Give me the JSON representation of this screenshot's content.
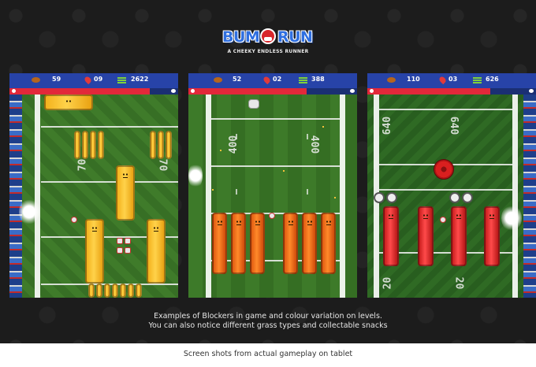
{
  "logo": {
    "word1": "BUM",
    "word2": "RUN",
    "tagline": "A CHEEKY ENDLESS RUNNER"
  },
  "screens": [
    {
      "footballs": "59",
      "pins": "09",
      "score": "2622",
      "health_fraction": 0.83,
      "field_number": "70",
      "blocker_color": "yellow"
    },
    {
      "footballs": "52",
      "pins": "02",
      "score": "388",
      "health_fraction": 0.7,
      "field_number": "400",
      "blocker_color": "orange"
    },
    {
      "footballs": "110",
      "pins": "03",
      "score": "626",
      "health_fraction": 0.73,
      "field_number": "640",
      "field_number_bottom": "20",
      "blocker_color": "red"
    }
  ],
  "captions": {
    "line1": "Examples of Blockers in game and colour variation on levels.",
    "line2": "You can also notice different grass types and collectable snacks"
  },
  "footer": {
    "text": "Screen shots from actual gameplay on tablet"
  },
  "icons": {
    "football": "football-icon",
    "pin": "location-pin-icon",
    "score": "stack-icon",
    "heart": "heart-icon",
    "eye": "eye-icon"
  },
  "colors": {
    "hud_blue": "#2743a8",
    "health_red": "#e2283a",
    "yellow_blocker": "#f3b21d",
    "orange_blocker": "#ff8a2a",
    "red_blocker": "#d91f1f"
  }
}
